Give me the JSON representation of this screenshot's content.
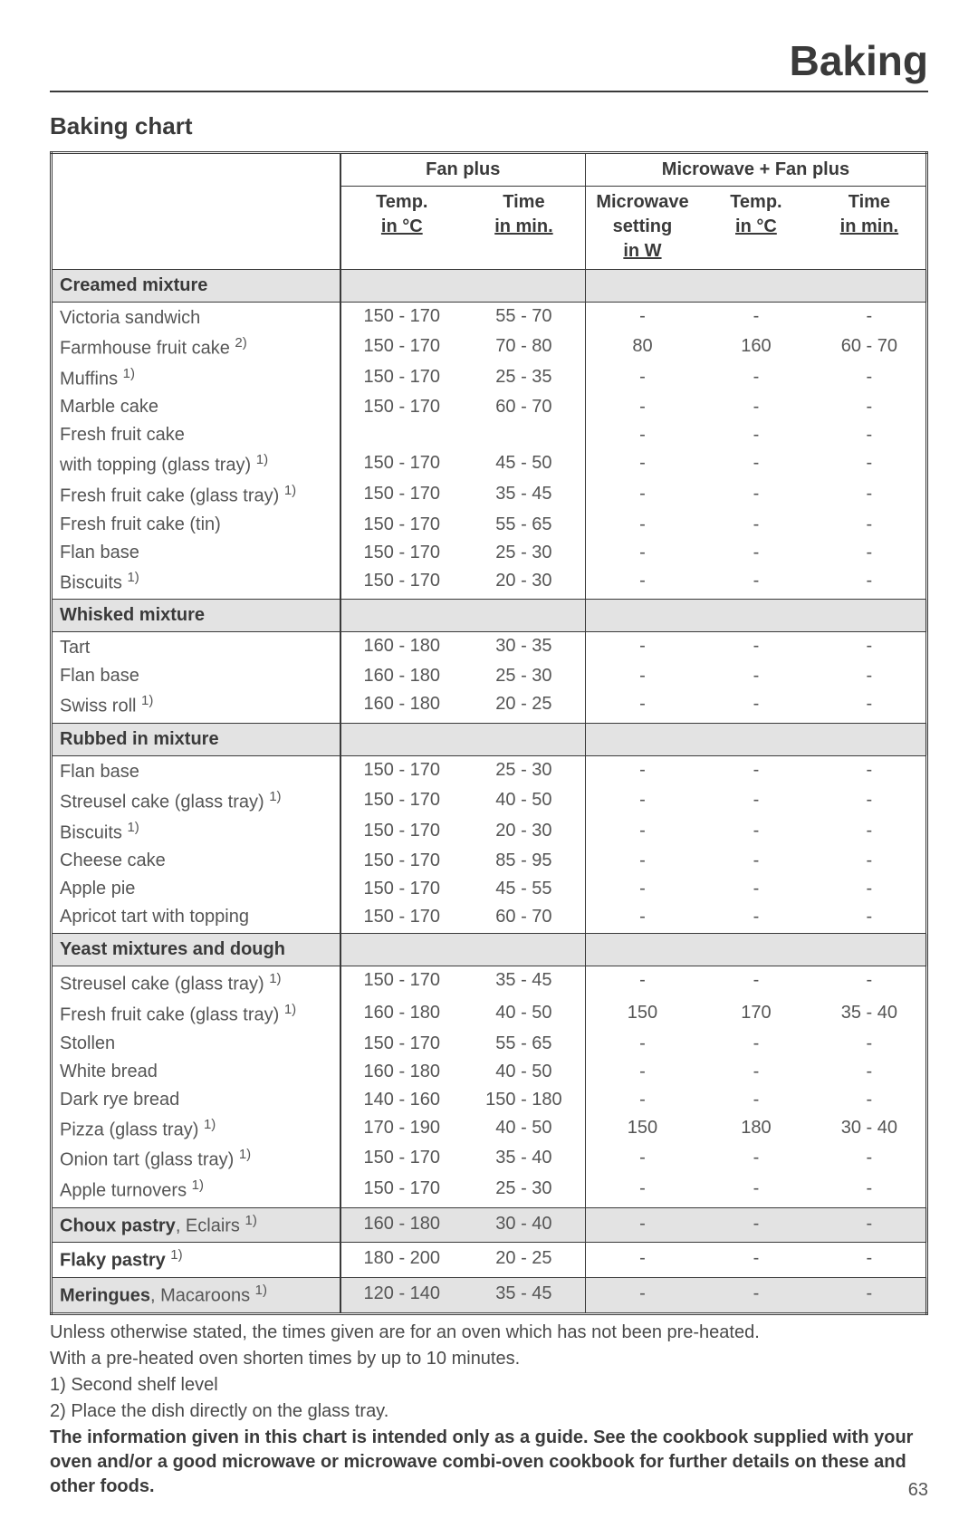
{
  "page": {
    "title": "Baking",
    "chart_title": "Baking chart",
    "page_number": "63"
  },
  "colors": {
    "text": "#4a4a4a",
    "heading": "#3a3a3a",
    "rule": "#3a3a3a",
    "section_bg": "#e3e3e3",
    "page_bg": "#ffffff"
  },
  "typography": {
    "title_fontsize_pt": 34,
    "chart_title_fontsize_pt": 19,
    "body_fontsize_pt": 15,
    "font_family": "Helvetica/Arial"
  },
  "table": {
    "column_widths_pct": [
      33,
      14,
      14,
      13,
      13,
      13
    ],
    "header_group_labels": {
      "fan_plus": "Fan plus",
      "mw_fan_plus": "Microwave + Fan plus"
    },
    "sub_headers": {
      "temp_label": "Temp.",
      "temp_unit": "in °C",
      "time_label": "Time",
      "time_unit": "in min.",
      "mw_label": "Microwave setting",
      "mw_unit": "in W"
    }
  },
  "sections": [
    {
      "title": "Creamed mixture",
      "rows": [
        {
          "name": "Victoria sandwich",
          "sup": "",
          "fp_temp": "150 - 170",
          "fp_time": "55 - 70",
          "mw_w": "-",
          "mw_temp": "-",
          "mw_time": "-"
        },
        {
          "name": "Farmhouse fruit cake",
          "sup": "2)",
          "fp_temp": "150 - 170",
          "fp_time": "70 - 80",
          "mw_w": "80",
          "mw_temp": "160",
          "mw_time": "60 - 70"
        },
        {
          "name": "Muffins",
          "sup": "1)",
          "fp_temp": "150 - 170",
          "fp_time": "25 - 35",
          "mw_w": "-",
          "mw_temp": "-",
          "mw_time": "-"
        },
        {
          "name": "Marble cake",
          "sup": "",
          "fp_temp": "150 - 170",
          "fp_time": "60 - 70",
          "mw_w": "-",
          "mw_temp": "-",
          "mw_time": "-"
        },
        {
          "name": "Fresh fruit cake",
          "sup": "",
          "fp_temp": "",
          "fp_time": "",
          "mw_w": "-",
          "mw_temp": "-",
          "mw_time": "-"
        },
        {
          "name": "with topping (glass tray)",
          "sup": "1)",
          "fp_temp": "150 - 170",
          "fp_time": "45 - 50",
          "mw_w": "-",
          "mw_temp": "-",
          "mw_time": "-"
        },
        {
          "name": "Fresh fruit cake (glass tray)",
          "sup": "1)",
          "fp_temp": "150 - 170",
          "fp_time": "35 - 45",
          "mw_w": "-",
          "mw_temp": "-",
          "mw_time": "-"
        },
        {
          "name": "Fresh fruit cake (tin)",
          "sup": "",
          "fp_temp": "150 - 170",
          "fp_time": "55 - 65",
          "mw_w": "-",
          "mw_temp": "-",
          "mw_time": "-"
        },
        {
          "name": "Flan base",
          "sup": "",
          "fp_temp": "150 - 170",
          "fp_time": "25 - 30",
          "mw_w": "-",
          "mw_temp": "-",
          "mw_time": "-"
        },
        {
          "name": "Biscuits",
          "sup": "1)",
          "fp_temp": "150 - 170",
          "fp_time": "20 - 30",
          "mw_w": "-",
          "mw_temp": "-",
          "mw_time": "-"
        }
      ]
    },
    {
      "title": "Whisked mixture",
      "rows": [
        {
          "name": "Tart",
          "sup": "",
          "fp_temp": "160 - 180",
          "fp_time": "30 - 35",
          "mw_w": "-",
          "mw_temp": "-",
          "mw_time": "-"
        },
        {
          "name": "Flan base",
          "sup": "",
          "fp_temp": "160 - 180",
          "fp_time": "25 - 30",
          "mw_w": "-",
          "mw_temp": "-",
          "mw_time": "-"
        },
        {
          "name": "Swiss roll",
          "sup": "1)",
          "fp_temp": "160 - 180",
          "fp_time": "20 - 25",
          "mw_w": "-",
          "mw_temp": "-",
          "mw_time": "-"
        }
      ]
    },
    {
      "title": "Rubbed in mixture",
      "rows": [
        {
          "name": "Flan base",
          "sup": "",
          "fp_temp": "150 - 170",
          "fp_time": "25 - 30",
          "mw_w": "-",
          "mw_temp": "-",
          "mw_time": "-"
        },
        {
          "name": "Streusel cake (glass tray)",
          "sup": "1)",
          "fp_temp": "150 - 170",
          "fp_time": "40 - 50",
          "mw_w": "-",
          "mw_temp": "-",
          "mw_time": "-"
        },
        {
          "name": "Biscuits",
          "sup": "1)",
          "fp_temp": "150 - 170",
          "fp_time": "20 - 30",
          "mw_w": "-",
          "mw_temp": "-",
          "mw_time": "-"
        },
        {
          "name": "Cheese cake",
          "sup": "",
          "fp_temp": "150 - 170",
          "fp_time": "85 - 95",
          "mw_w": "-",
          "mw_temp": "-",
          "mw_time": "-"
        },
        {
          "name": "Apple pie",
          "sup": "",
          "fp_temp": "150 - 170",
          "fp_time": "45 - 55",
          "mw_w": "-",
          "mw_temp": "-",
          "mw_time": "-"
        },
        {
          "name": "Apricot tart with topping",
          "sup": "",
          "fp_temp": "150 - 170",
          "fp_time": "60 - 70",
          "mw_w": "-",
          "mw_temp": "-",
          "mw_time": "-"
        }
      ]
    },
    {
      "title": "Yeast mixtures and dough",
      "rows": [
        {
          "name": "Streusel cake (glass tray)",
          "sup": "1)",
          "fp_temp": "150 - 170",
          "fp_time": "35 - 45",
          "mw_w": "-",
          "mw_temp": "-",
          "mw_time": "-"
        },
        {
          "name": "Fresh fruit cake (glass tray)",
          "sup": "1)",
          "fp_temp": "160 - 180",
          "fp_time": "40 - 50",
          "mw_w": "150",
          "mw_temp": "170",
          "mw_time": "35 - 40"
        },
        {
          "name": "Stollen",
          "sup": "",
          "fp_temp": "150 - 170",
          "fp_time": "55 - 65",
          "mw_w": "-",
          "mw_temp": "-",
          "mw_time": "-"
        },
        {
          "name": "White bread",
          "sup": "",
          "fp_temp": "160 - 180",
          "fp_time": "40 - 50",
          "mw_w": "-",
          "mw_temp": "-",
          "mw_time": "-"
        },
        {
          "name": "Dark rye bread",
          "sup": "",
          "fp_temp": "140 - 160",
          "fp_time": "150 - 180",
          "mw_w": "-",
          "mw_temp": "-",
          "mw_time": "-"
        },
        {
          "name": "Pizza (glass tray)",
          "sup": "1)",
          "fp_temp": "170 - 190",
          "fp_time": "40 - 50",
          "mw_w": "150",
          "mw_temp": "180",
          "mw_time": "30 - 40"
        },
        {
          "name": "Onion tart (glass tray)",
          "sup": "1)",
          "fp_temp": "150 - 170",
          "fp_time": "35 - 40",
          "mw_w": "-",
          "mw_temp": "-",
          "mw_time": "-"
        },
        {
          "name": "Apple turnovers",
          "sup": "1)",
          "fp_temp": "150 - 170",
          "fp_time": "25 - 30",
          "mw_w": "-",
          "mw_temp": "-",
          "mw_time": "-"
        }
      ]
    }
  ],
  "single_rows": [
    {
      "bold": "Choux pastry",
      "rest": ", Eclairs",
      "sup": "1)",
      "fp_temp": "160 - 180",
      "fp_time": "30 - 40",
      "mw_w": "-",
      "mw_temp": "-",
      "mw_time": "-",
      "shaded": true
    },
    {
      "bold": "Flaky pastry",
      "rest": "",
      "sup": "1)",
      "fp_temp": "180 - 200",
      "fp_time": "20 - 25",
      "mw_w": "-",
      "mw_temp": "-",
      "mw_time": "-",
      "shaded": false
    },
    {
      "bold": "Meringues",
      "rest": ", Macaroons",
      "sup": "1)",
      "fp_temp": "120 - 140",
      "fp_time": "35 - 45",
      "mw_w": "-",
      "mw_temp": "-",
      "mw_time": "-",
      "shaded": true
    }
  ],
  "notes": {
    "line1": "Unless otherwise stated, the times given are for an oven which has not been pre-heated.",
    "line2": "With a pre-heated oven shorten times by up to 10 minutes.",
    "fn1": "1) Second shelf level",
    "fn2": "2) Place the dish directly on the glass tray.",
    "bold": "The information given in this chart is intended only as a guide. See the cookbook supplied with your oven and/or a good microwave or microwave combi-oven cookbook for further details on these and other foods."
  }
}
